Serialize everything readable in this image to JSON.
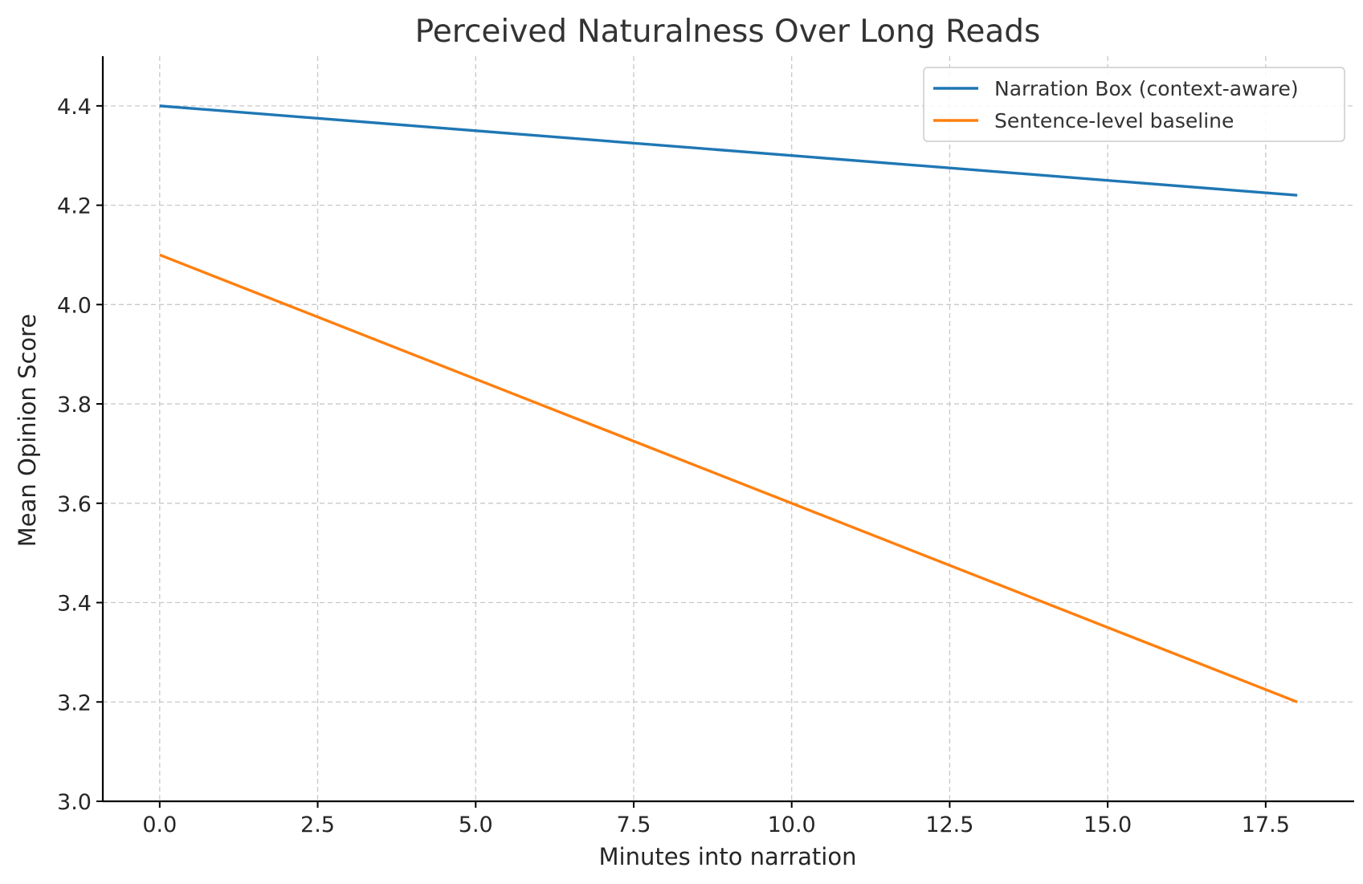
{
  "chart_data": {
    "type": "line",
    "title": "Perceived Naturalness Over Long Reads",
    "xlabel": "Minutes into narration",
    "ylabel": "Mean Opinion Score",
    "xlim": [
      -0.9,
      18.9
    ],
    "ylim": [
      3.0,
      4.5
    ],
    "xticks": [
      0.0,
      2.5,
      5.0,
      7.5,
      10.0,
      12.5,
      15.0,
      17.5
    ],
    "xtick_labels": [
      "0.0",
      "2.5",
      "5.0",
      "7.5",
      "10.0",
      "12.5",
      "15.0",
      "17.5"
    ],
    "yticks": [
      3.0,
      3.2,
      3.4,
      3.6,
      3.8,
      4.0,
      4.2,
      4.4
    ],
    "ytick_labels": [
      "3.0",
      "3.2",
      "3.4",
      "3.6",
      "3.8",
      "4.0",
      "4.2",
      "4.4"
    ],
    "grid": true,
    "legend_position": "top-right",
    "series": [
      {
        "name": "Narration Box (context-aware)",
        "color": "#1f77b4",
        "x": [
          0,
          18
        ],
        "y": [
          4.4,
          4.22
        ]
      },
      {
        "name": "Sentence-level baseline",
        "color": "#ff7f0e",
        "x": [
          0,
          18
        ],
        "y": [
          4.1,
          3.2
        ]
      }
    ]
  }
}
